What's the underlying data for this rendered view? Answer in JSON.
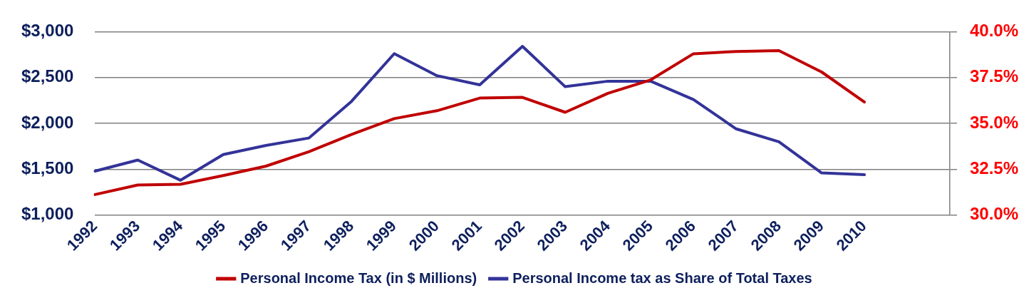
{
  "chart_data": {
    "type": "line",
    "categories": [
      "1992",
      "1993",
      "1994",
      "1995",
      "1996",
      "1997",
      "1998",
      "1999",
      "2000",
      "2001",
      "2002",
      "2003",
      "2004",
      "2005",
      "2006",
      "2007",
      "2008",
      "2009",
      "2010",
      null,
      null
    ],
    "series": [
      {
        "name": "Personal Income Tax (in $ Millions)",
        "color": "#c00000",
        "values": [
          1224,
          1328,
          1336,
          1431,
          1534,
          1690,
          1879,
          2052,
          2138,
          2276,
          2284,
          2121,
          2328,
          2474,
          2759,
          2784,
          2793,
          2560,
          2233,
          null,
          null
        ]
      },
      {
        "name": "Personal Income tax as Share of Total Taxes",
        "color": "#333399",
        "axis": "y2",
        "values": [
          32.4,
          33.0,
          31.9,
          33.3,
          33.8,
          34.2,
          36.2,
          38.8,
          37.6,
          37.1,
          39.2,
          37.0,
          37.3,
          37.3,
          36.3,
          34.7,
          34.0,
          32.3,
          32.2,
          null,
          null
        ]
      }
    ],
    "ylim": [
      1000,
      3000
    ],
    "yticks": [
      {
        "value": 1000,
        "label": "$1,000"
      },
      {
        "value": 1500,
        "label": "$1,500"
      },
      {
        "value": 2000,
        "label": "$2,000"
      },
      {
        "value": 2500,
        "label": "$2,500"
      },
      {
        "value": 3000,
        "label": "$3,000"
      }
    ],
    "y2lim": [
      30,
      40
    ],
    "y2ticks": [
      {
        "value": 30,
        "label": "30.0%"
      },
      {
        "value": 32.5,
        "label": "32.5%"
      },
      {
        "value": 35,
        "label": "35.0%"
      },
      {
        "value": 37.5,
        "label": "37.5%"
      },
      {
        "value": 40,
        "label": "40.0%"
      }
    ],
    "grid": "y",
    "legend": "bottom",
    "marker": "none",
    "line_style": "solid"
  }
}
